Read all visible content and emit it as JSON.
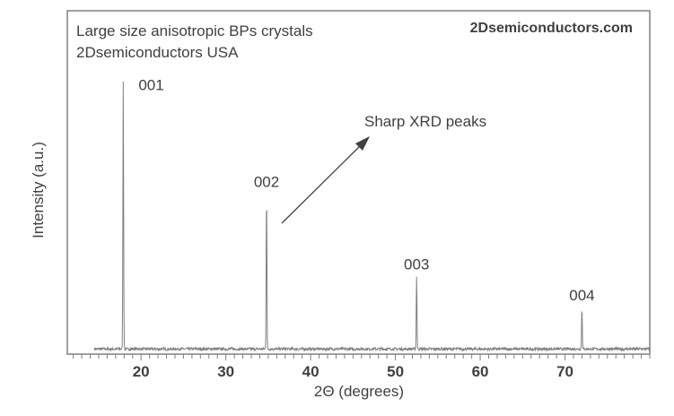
{
  "chart_data": {
    "type": "line",
    "title": "",
    "xlabel": "2Θ (degrees)",
    "ylabel": "Intensity (a.u.)",
    "xlim": [
      11.3,
      80
    ],
    "ylim": [
      0,
      100
    ],
    "x_ticks": [
      20,
      30,
      40,
      50,
      60,
      70
    ],
    "x_minor_step": 1,
    "grid": false,
    "line_color": "#808080",
    "data_range": [
      14.5,
      80
    ],
    "baseline": 1.5,
    "peaks": [
      {
        "label": "001",
        "x": 17.9,
        "y": 78
      },
      {
        "label": "002",
        "x": 34.8,
        "y": 45
      },
      {
        "label": "003",
        "x": 52.5,
        "y": 21
      },
      {
        "label": "004",
        "x": 72.0,
        "y": 12
      }
    ],
    "annotations": {
      "description_line1": "Large size anisotropic BPs crystals",
      "description_line2": "2Dsemiconductors USA",
      "brand": "2Dsemiconductors.com",
      "arrow_text": "Sharp XRD peaks"
    }
  }
}
